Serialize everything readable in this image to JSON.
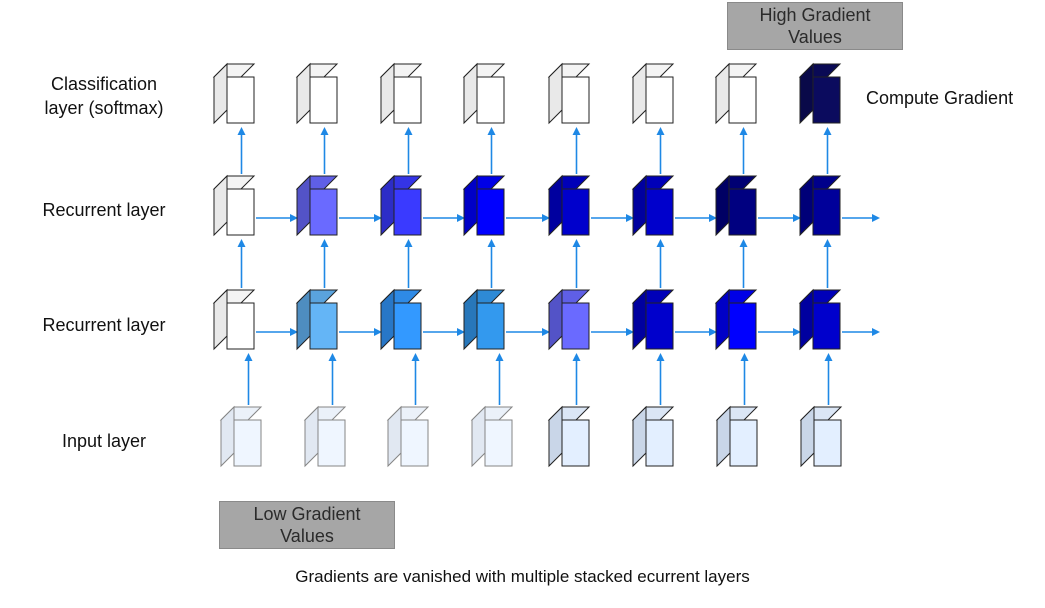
{
  "labels": {
    "classification": "Classification\nlayer (softmax)",
    "recurrent_top": "Recurrent layer",
    "recurrent_bottom": "Recurrent layer",
    "input": "Input layer",
    "compute_gradient": "Compute Gradient",
    "high_gradient": "High Gradient\nValues",
    "low_gradient": "Low Gradient\nValues",
    "caption": "Gradients are vanished with multiple stacked ecurrent layers"
  },
  "colors": {
    "arrow": "#1e88e5",
    "gray_box": "#a6a6a6"
  },
  "grid": {
    "columns": 8,
    "classification_colors": [
      "#ffffff",
      "#ffffff",
      "#ffffff",
      "#ffffff",
      "#ffffff",
      "#ffffff",
      "#ffffff",
      "#0b0b5e"
    ],
    "recurrent_top_colors": [
      "#ffffff",
      "#6a6aff",
      "#3a3aff",
      "#0000ff",
      "#0000cc",
      "#0000cc",
      "#000080",
      "#00009a"
    ],
    "recurrent_bottom_colors": [
      "#ffffff",
      "#64b5f6",
      "#3399ff",
      "#3399ee",
      "#6a6aff",
      "#0000cc",
      "#0000ff",
      "#0000cc"
    ],
    "input_colors": [
      "#e3efff",
      "#e3efff",
      "#e3efff",
      "#e3efff",
      "#e3efff",
      "#e3efff",
      "#e3efff",
      "#e3efff"
    ],
    "input_faded": [
      true,
      true,
      true,
      true,
      false,
      false,
      false,
      false
    ]
  }
}
